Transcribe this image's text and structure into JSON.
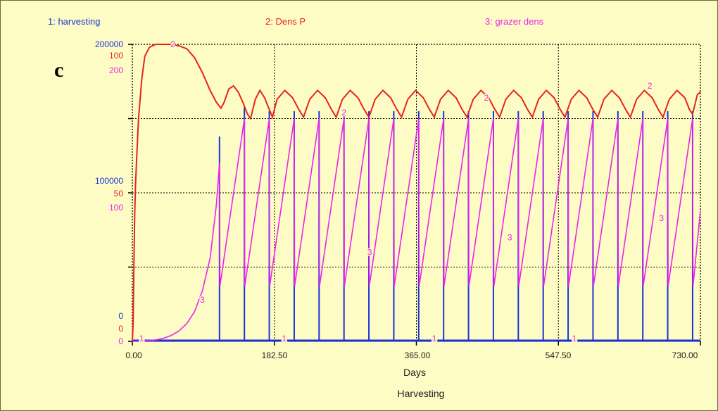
{
  "chart_data": {
    "type": "line",
    "panel_label": "c",
    "title": "Harvesting",
    "xlabel": "Days",
    "xlim": [
      0,
      730
    ],
    "x_ticks": [
      "0.00",
      "182.50",
      "365.00",
      "547.50",
      "730.00"
    ],
    "grid": true,
    "legend_position": "top",
    "series": [
      {
        "id": 1,
        "name": "1: harvesting",
        "color": "#1b32d8",
        "ylim": [
          0,
          200000
        ],
        "axis_labels": {
          "top": "200000",
          "mid": "100000",
          "bottom": "0"
        },
        "pulse_days": [
          112,
          144,
          176,
          208,
          240,
          272,
          304,
          336,
          368,
          400,
          432,
          464,
          496,
          528,
          560,
          592,
          624,
          656,
          688,
          720
        ],
        "pulse_values": [
          138000,
          158000,
          155000,
          155000,
          155000,
          155000,
          155000,
          155000,
          155000,
          155000,
          155000,
          155000,
          155000,
          155000,
          155000,
          155000,
          155000,
          155000,
          155000,
          155000
        ],
        "label_days": [
          12,
          195,
          388,
          568
        ]
      },
      {
        "id": 2,
        "name": "2: Dens P",
        "color": "#e8231e",
        "ylim": [
          0,
          100
        ],
        "axis_labels": {
          "top": "100",
          "mid": "50",
          "bottom": "0"
        },
        "points": [
          [
            0,
            0
          ],
          [
            1,
            6
          ],
          [
            2,
            25
          ],
          [
            3,
            42
          ],
          [
            4,
            52
          ],
          [
            6,
            64
          ],
          [
            8,
            75
          ],
          [
            12,
            88
          ],
          [
            16,
            96
          ],
          [
            22,
            99
          ],
          [
            30,
            100
          ],
          [
            50,
            100
          ],
          [
            60,
            99.5
          ],
          [
            70,
            98.5
          ],
          [
            80,
            95.5
          ],
          [
            90,
            90.5
          ],
          [
            100,
            84.5
          ],
          [
            108,
            80.5
          ],
          [
            114,
            78.5
          ],
          [
            118,
            80.5
          ],
          [
            124,
            85
          ],
          [
            130,
            86
          ],
          [
            136,
            84
          ],
          [
            142,
            80.5
          ],
          [
            148,
            76.5
          ],
          [
            152,
            75
          ],
          [
            158,
            81.5
          ],
          [
            164,
            84.5
          ],
          [
            170,
            82
          ],
          [
            176,
            78
          ],
          [
            180,
            75.5
          ],
          [
            186,
            81.5
          ],
          [
            196,
            84.5
          ],
          [
            206,
            82
          ],
          [
            214,
            78
          ],
          [
            220,
            75.5
          ],
          [
            228,
            81.5
          ],
          [
            238,
            84.5
          ],
          [
            248,
            82
          ],
          [
            256,
            78
          ],
          [
            262,
            75.5
          ],
          [
            270,
            81.5
          ],
          [
            280,
            84.5
          ],
          [
            290,
            82
          ],
          [
            298,
            78
          ],
          [
            304,
            75.5
          ],
          [
            312,
            81.5
          ],
          [
            322,
            84.5
          ],
          [
            332,
            82
          ],
          [
            340,
            78
          ],
          [
            346,
            75.5
          ],
          [
            354,
            81.5
          ],
          [
            364,
            84.5
          ],
          [
            374,
            82
          ],
          [
            382,
            78
          ],
          [
            388,
            75.5
          ],
          [
            396,
            81.5
          ],
          [
            406,
            84.5
          ],
          [
            416,
            82
          ],
          [
            424,
            78
          ],
          [
            430,
            75.5
          ],
          [
            438,
            81.5
          ],
          [
            448,
            84.5
          ],
          [
            458,
            82
          ],
          [
            466,
            78
          ],
          [
            472,
            75.5
          ],
          [
            480,
            81.5
          ],
          [
            490,
            84.5
          ],
          [
            500,
            82
          ],
          [
            508,
            78
          ],
          [
            514,
            75.5
          ],
          [
            522,
            81.5
          ],
          [
            532,
            84.5
          ],
          [
            542,
            82
          ],
          [
            550,
            78
          ],
          [
            556,
            75.5
          ],
          [
            564,
            81.5
          ],
          [
            574,
            84.5
          ],
          [
            584,
            82
          ],
          [
            592,
            78
          ],
          [
            598,
            75.5
          ],
          [
            606,
            81.5
          ],
          [
            616,
            84.5
          ],
          [
            626,
            82
          ],
          [
            634,
            78
          ],
          [
            640,
            75.5
          ],
          [
            648,
            81.5
          ],
          [
            658,
            84.5
          ],
          [
            668,
            82
          ],
          [
            676,
            78
          ],
          [
            682,
            75.5
          ],
          [
            690,
            81.5
          ],
          [
            700,
            84.5
          ],
          [
            710,
            82
          ],
          [
            716,
            78
          ],
          [
            720,
            76.5
          ],
          [
            726,
            83
          ],
          [
            730,
            84
          ]
        ],
        "label_points": [
          [
            52,
            100
          ],
          [
            272,
            77
          ],
          [
            455,
            82
          ],
          [
            665,
            86
          ]
        ]
      },
      {
        "id": 3,
        "name": "3: grazer dens",
        "color": "#ee22ee",
        "ylim": [
          0,
          200
        ],
        "axis_labels": {
          "top": "200",
          "mid": "100",
          "bottom": "0"
        },
        "points": [
          [
            0,
            0
          ],
          [
            10,
            0
          ],
          [
            20,
            0.5
          ],
          [
            30,
            1
          ],
          [
            40,
            2
          ],
          [
            50,
            4
          ],
          [
            60,
            7
          ],
          [
            70,
            12
          ],
          [
            80,
            20
          ],
          [
            90,
            34
          ],
          [
            100,
            56
          ],
          [
            108,
            92
          ],
          [
            112,
            120
          ],
          [
            112.5,
            37
          ],
          [
            144,
            150
          ],
          [
            144.5,
            37
          ],
          [
            176,
            150
          ],
          [
            176.5,
            37
          ],
          [
            208,
            150
          ],
          [
            208.5,
            37
          ],
          [
            240,
            150
          ],
          [
            240.5,
            37
          ],
          [
            272,
            150
          ],
          [
            272.5,
            37
          ],
          [
            304,
            150
          ],
          [
            304.5,
            37
          ],
          [
            336,
            150
          ],
          [
            336.5,
            37
          ],
          [
            368,
            150
          ],
          [
            368.5,
            37
          ],
          [
            400,
            150
          ],
          [
            400.5,
            37
          ],
          [
            432,
            150
          ],
          [
            432.5,
            37
          ],
          [
            464,
            150
          ],
          [
            464.5,
            37
          ],
          [
            496,
            150
          ],
          [
            496.5,
            37
          ],
          [
            528,
            150
          ],
          [
            528.5,
            37
          ],
          [
            560,
            150
          ],
          [
            560.5,
            37
          ],
          [
            592,
            150
          ],
          [
            592.5,
            37
          ],
          [
            624,
            150
          ],
          [
            624.5,
            37
          ],
          [
            656,
            150
          ],
          [
            656.5,
            37
          ],
          [
            688,
            150
          ],
          [
            688.5,
            37
          ],
          [
            720,
            150
          ],
          [
            720.5,
            37
          ],
          [
            730,
            88
          ]
        ],
        "label_points": [
          [
            90,
            28
          ],
          [
            305,
            60
          ],
          [
            485,
            70
          ],
          [
            680,
            83
          ]
        ]
      }
    ]
  }
}
